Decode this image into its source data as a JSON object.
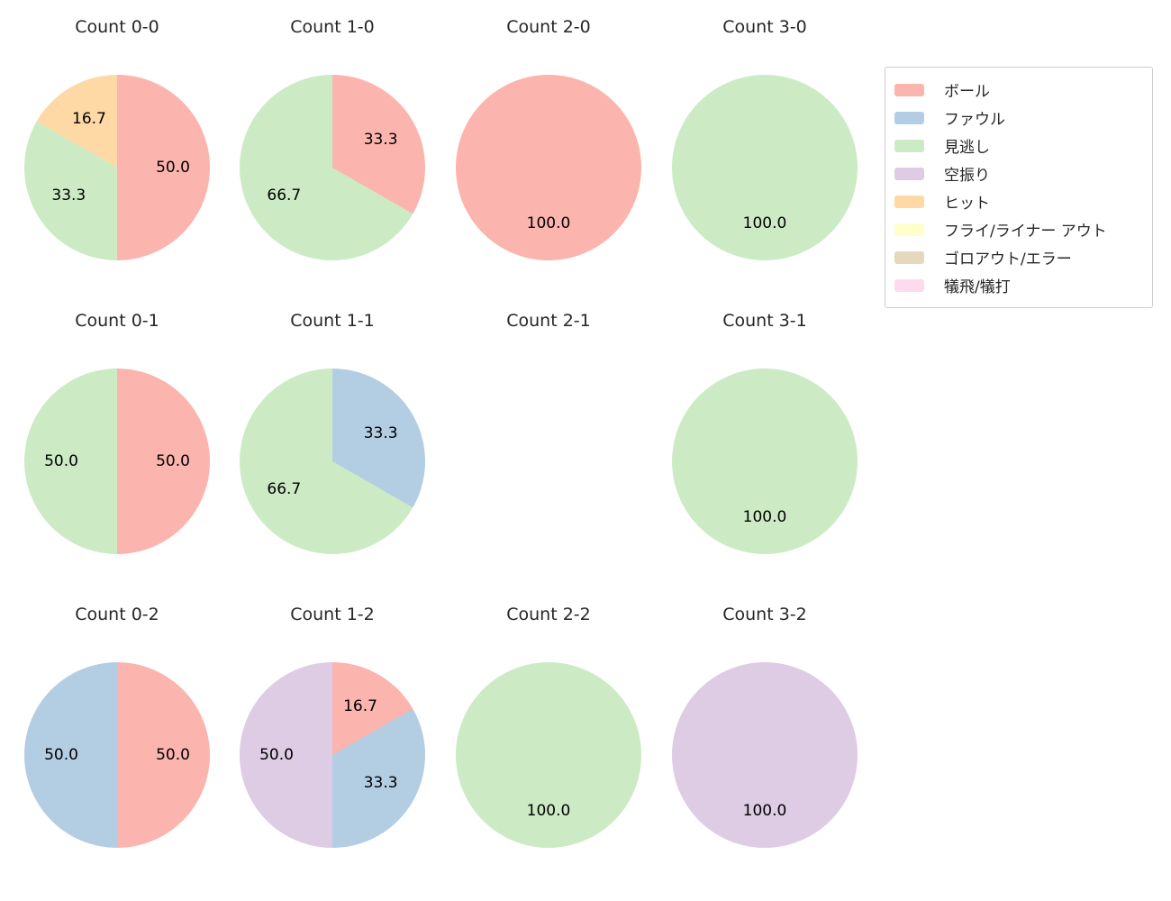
{
  "figure": {
    "background_color": "#ffffff",
    "title_color": "#262626",
    "label_color": "#000000"
  },
  "colors": {
    "ボール": "#fbb4ae",
    "ファウル": "#b3cde3",
    "見逃し": "#ccebc5",
    "空振り": "#decbe4",
    "ヒット": "#fed9a6",
    "フライ/ライナー アウト": "#ffffcc",
    "ゴロアウト/エラー": "#e5d8bd",
    "犠飛/犠打": "#fddaec"
  },
  "legend": {
    "items": [
      {
        "label": "ボール"
      },
      {
        "label": "ファウル"
      },
      {
        "label": "見逃し"
      },
      {
        "label": "空振り"
      },
      {
        "label": "ヒット"
      },
      {
        "label": "フライ/ライナー アウト"
      },
      {
        "label": "ゴロアウト/エラー"
      },
      {
        "label": "犠飛/犠打"
      }
    ]
  },
  "chart_data": [
    {
      "type": "pie",
      "title": "Count 0-0",
      "slices": [
        {
          "category": "ボール",
          "value": 50.0
        },
        {
          "category": "見逃し",
          "value": 33.3
        },
        {
          "category": "ヒット",
          "value": 16.7
        }
      ]
    },
    {
      "type": "pie",
      "title": "Count 1-0",
      "slices": [
        {
          "category": "ボール",
          "value": 33.3
        },
        {
          "category": "見逃し",
          "value": 66.7
        }
      ]
    },
    {
      "type": "pie",
      "title": "Count 2-0",
      "slices": [
        {
          "category": "ボール",
          "value": 100.0
        }
      ]
    },
    {
      "type": "pie",
      "title": "Count 3-0",
      "slices": [
        {
          "category": "見逃し",
          "value": 100.0
        }
      ]
    },
    {
      "type": "pie",
      "title": "Count 0-1",
      "slices": [
        {
          "category": "ボール",
          "value": 50.0
        },
        {
          "category": "見逃し",
          "value": 50.0
        }
      ]
    },
    {
      "type": "pie",
      "title": "Count 1-1",
      "slices": [
        {
          "category": "ファウル",
          "value": 33.3
        },
        {
          "category": "見逃し",
          "value": 66.7
        }
      ]
    },
    {
      "type": "pie",
      "title": "Count 2-1",
      "slices": []
    },
    {
      "type": "pie",
      "title": "Count 3-1",
      "slices": [
        {
          "category": "見逃し",
          "value": 100.0
        }
      ]
    },
    {
      "type": "pie",
      "title": "Count 0-2",
      "slices": [
        {
          "category": "ボール",
          "value": 50.0
        },
        {
          "category": "ファウル",
          "value": 50.0
        }
      ]
    },
    {
      "type": "pie",
      "title": "Count 1-2",
      "slices": [
        {
          "category": "ボール",
          "value": 16.7
        },
        {
          "category": "ファウル",
          "value": 33.3
        },
        {
          "category": "空振り",
          "value": 50.0
        }
      ]
    },
    {
      "type": "pie",
      "title": "Count 2-2",
      "slices": [
        {
          "category": "見逃し",
          "value": 100.0
        }
      ]
    },
    {
      "type": "pie",
      "title": "Count 3-2",
      "slices": [
        {
          "category": "空振り",
          "value": 100.0
        }
      ]
    }
  ]
}
